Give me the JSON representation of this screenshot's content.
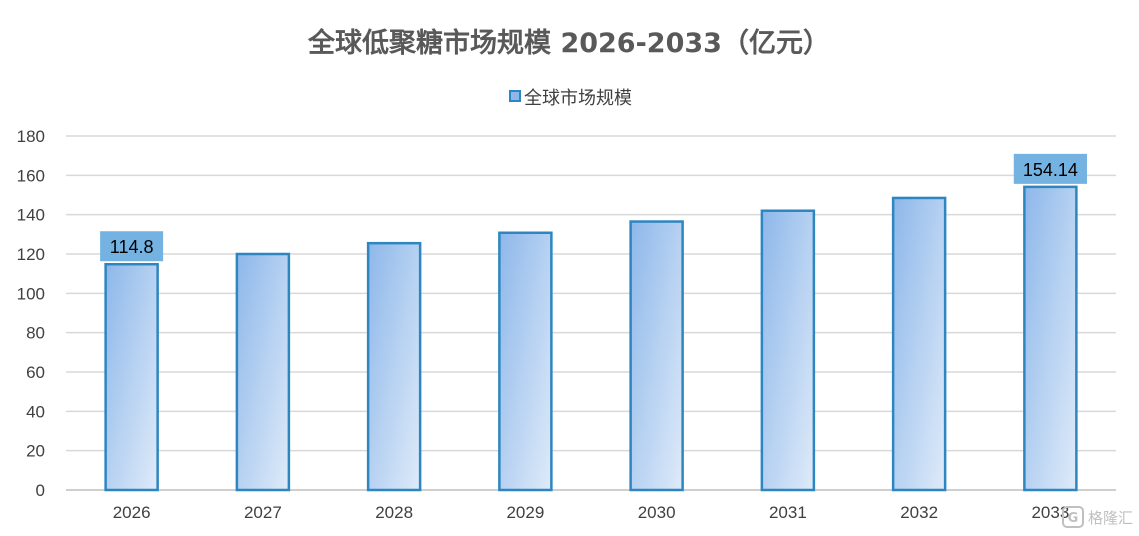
{
  "chart_data": {
    "type": "bar",
    "title": "全球低聚糖市场规模 2026-2033（亿元）",
    "categories": [
      "2026",
      "2027",
      "2028",
      "2029",
      "2030",
      "2031",
      "2032",
      "2033"
    ],
    "series": [
      {
        "name": "全球市场规模",
        "values": [
          114.8,
          120.0,
          125.5,
          130.8,
          136.5,
          142.0,
          148.5,
          154.14
        ]
      }
    ],
    "data_labels": [
      {
        "category": "2026",
        "text": "114.8"
      },
      {
        "category": "2033",
        "text": "154.14"
      }
    ],
    "ylim": [
      0,
      180
    ],
    "y_ticks": [
      "0",
      "20",
      "40",
      "60",
      "80",
      "100",
      "120",
      "140",
      "160",
      "180"
    ],
    "xlabel": "",
    "ylabel": "",
    "grid": true,
    "legend_position": "top"
  },
  "colors": {
    "bar_fill_top": "#8db7ea",
    "bar_fill_bottom": "#dfebf9",
    "bar_stroke": "#2e86c1",
    "label_bg": "#74b2e2",
    "grid": "#d9d9d9",
    "axis": "#bfbfbf"
  },
  "watermark": {
    "icon": "gelonghui-logo-icon",
    "text": "格隆汇"
  }
}
